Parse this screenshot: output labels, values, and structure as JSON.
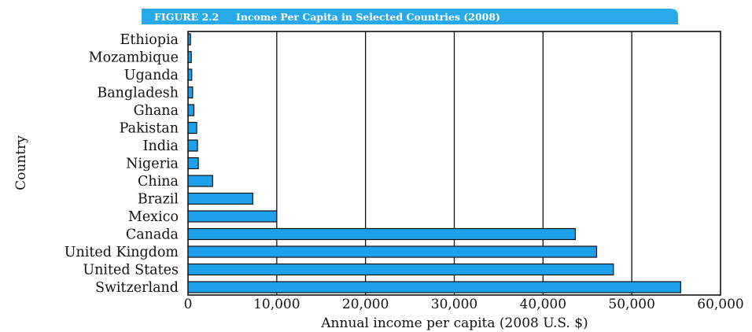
{
  "figure": {
    "label": "FIGURE 2.2",
    "title": "Income Per Capita in Selected Countries (2008)"
  },
  "colors": {
    "bar": "#1da1ec",
    "bar_stroke": "#111111",
    "banner": "#29a9ea",
    "grid": "#111111"
  },
  "chart_data": {
    "type": "bar",
    "orientation": "horizontal",
    "title": "Income Per Capita in Selected Countries (2008)",
    "xlabel": "Annual income per capita (2008 U.S. $)",
    "ylabel": "Country",
    "xlim": [
      0,
      60000
    ],
    "xticks": [
      0,
      10000,
      20000,
      30000,
      40000,
      50000,
      60000
    ],
    "xtick_labels": [
      "0",
      "10,000",
      "20,000",
      "30,000",
      "40,000",
      "50,000",
      "60,000"
    ],
    "grid": "vertical",
    "categories": [
      "Ethiopia",
      "Mozambique",
      "Uganda",
      "Bangladesh",
      "Ghana",
      "Pakistan",
      "India",
      "Nigeria",
      "China",
      "Brazil",
      "Mexico",
      "Canada",
      "United Kingdom",
      "United States",
      "Switzerland"
    ],
    "values": [
      280,
      370,
      420,
      520,
      670,
      980,
      1070,
      1160,
      2770,
      7300,
      9980,
      43640,
      46040,
      47930,
      55510
    ]
  }
}
